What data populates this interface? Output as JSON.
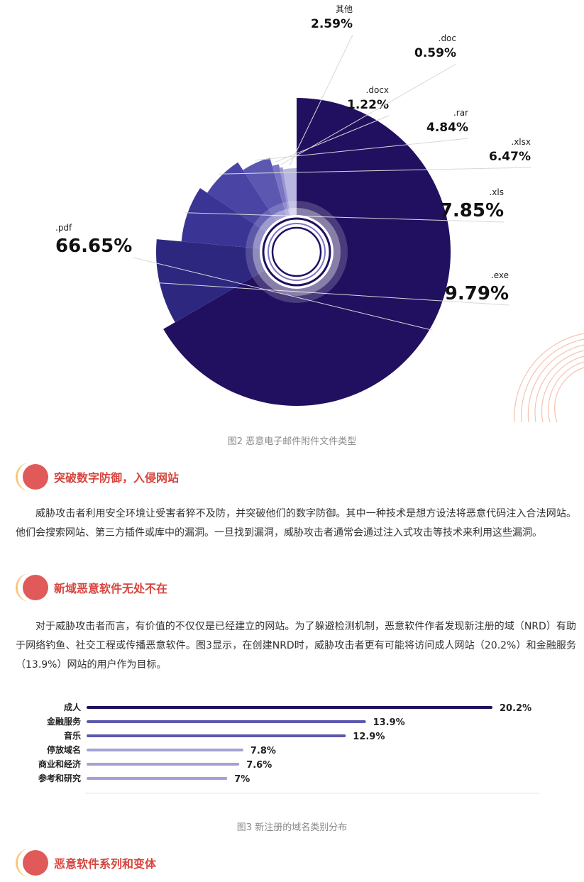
{
  "figure2": {
    "caption": "图2 恶意电子邮件附件文件类型"
  },
  "chart_data": [
    {
      "type": "pie",
      "categories": [
        ".pdf",
        ".exe",
        ".xls",
        ".xlsx",
        ".rar",
        ".docx",
        ".doc",
        "其他"
      ],
      "values": [
        66.65,
        9.79,
        7.85,
        6.47,
        4.84,
        1.22,
        0.59,
        2.59
      ],
      "labels": [
        "66.65%",
        "9.79%",
        "7.85%",
        "6.47%",
        "4.84%",
        "1.22%",
        "0.59%",
        "2.59%"
      ],
      "colors": [
        "#211060",
        "#2e2780",
        "#3a3594",
        "#4a45a5",
        "#5c58b2",
        "#7a76c4",
        "#9a97d3",
        "#b9b7e2"
      ]
    },
    {
      "type": "bar",
      "orientation": "horizontal",
      "categories": [
        "成人",
        "金融服务",
        "音乐",
        "停放域名",
        "商业和经济",
        "参考和研究"
      ],
      "values": [
        20.2,
        13.9,
        12.9,
        7.8,
        7.6,
        7
      ],
      "labels": [
        "20.2%",
        "13.9%",
        "12.9%",
        "7.8%",
        "7.6%",
        "7%"
      ],
      "colors": [
        "#211060",
        "#5b58b0",
        "#5b58b0",
        "#a3a1d6",
        "#a3a1d6",
        "#a3a1d6"
      ]
    }
  ],
  "section1": {
    "title": "突破数字防御，入侵网站",
    "body": "威胁攻击者利用安全环境让受害者猝不及防，并突破他们的数字防御。其中一种技术是想方设法将恶意代码注入合法网站。他们会搜索网站、第三方插件或库中的漏洞。一旦找到漏洞，威胁攻击者通常会通过注入式攻击等技术来利用这些漏洞。"
  },
  "section2": {
    "title": "新域恶意软件无处不在",
    "body": "对于威胁攻击者而言，有价值的不仅仅是已经建立的网站。为了躲避检测机制，恶意软件作者发现新注册的域（NRD）有助于网络钓鱼、社交工程或传播恶意软件。图3显示，在创建NRD时，威胁攻击者更有可能将访问成人网站（20.2%）和金融服务（13.9%）网站的用户作为目标。"
  },
  "figure3": {
    "caption": "图3 新注册的域名类别分布"
  },
  "section3": {
    "title": "恶意软件系列和变体"
  }
}
